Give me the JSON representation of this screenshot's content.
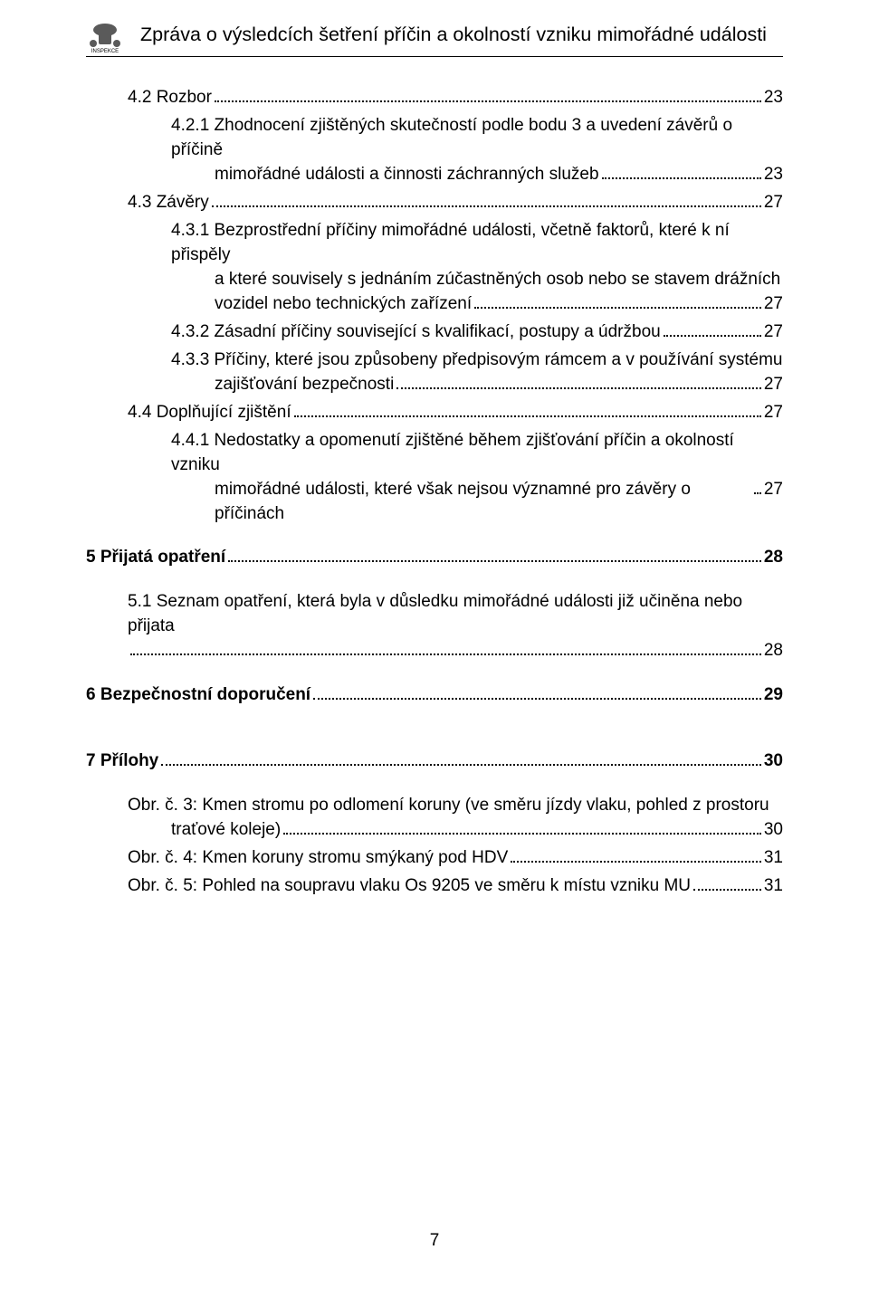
{
  "header": {
    "title": "Zpráva o výsledcích šetření příčin a okolností vzniku mimořádné události",
    "logo_fill": "#6b6b6b",
    "logo_text": "INSPEKCE"
  },
  "toc": [
    {
      "label": "4.2 Rozbor",
      "page": "23",
      "indent": 1,
      "gap": ""
    },
    {
      "label": "4.2.1 Zhodnocení zjištěných skutečností podle bodu 3 a uvedení závěrů o příčině",
      "cont": "mimořádné události a činnosti záchranných služeb",
      "page": "23",
      "indent": 2,
      "gap": "s"
    },
    {
      "label": "4.3 Závěry",
      "page": "27",
      "indent": 1,
      "gap": "s"
    },
    {
      "label": "4.3.1 Bezprostřední příčiny mimořádné události, včetně faktorů, které k ní přispěly",
      "cont": "a které souvisely s jednáním zúčastněných osob nebo se stavem drážních",
      "cont2": "vozidel nebo technických zařízení",
      "page": "27",
      "indent": 2,
      "gap": "s"
    },
    {
      "label": "4.3.2 Zásadní příčiny související s kvalifikací, postupy a údržbou",
      "page": "27",
      "indent": 2,
      "gap": "s"
    },
    {
      "label": "4.3.3 Příčiny, které jsou způsobeny předpisovým rámcem a v používání systému",
      "cont": "zajišťování bezpečnosti",
      "page": "27",
      "indent": 2,
      "gap": "s"
    },
    {
      "label": "4.4 Doplňující zjištění",
      "page": "27",
      "indent": 1,
      "gap": "s"
    },
    {
      "label": "4.4.1 Nedostatky a opomenutí zjištěné během zjišťování příčin a okolností vzniku",
      "cont": "mimořádné události, které však nejsou významné pro závěry o příčinách",
      "page": "27",
      "indent": 2,
      "gap": "s"
    },
    {
      "label": "5 Přijatá opatření",
      "page": "28",
      "indent": 0,
      "bold": true,
      "gap": "m"
    },
    {
      "label": "5.1 Seznam opatření, která byla v důsledku mimořádné události již učiněna nebo přijata",
      "cont": "",
      "page": "28",
      "indent": 1,
      "gap": "m",
      "full_first": true
    },
    {
      "label": "6 Bezpečnostní doporučení",
      "page": "29",
      "indent": 0,
      "bold": true,
      "gap": "m"
    },
    {
      "label": "7 Přílohy",
      "page": "30",
      "indent": 0,
      "bold": true,
      "gap": "l",
      "extra_gap": true
    },
    {
      "label": "Obr. č. 3: Kmen stromu po odlomení koruny (ve směru jízdy vlaku, pohled z prostoru",
      "cont": "traťové koleje)",
      "page": "30",
      "indent": 3,
      "gap": "m",
      "obr": true
    },
    {
      "label": "Obr. č. 4: Kmen koruny stromu smýkaný pod HDV",
      "page": "31",
      "indent": 3,
      "gap": "s",
      "obr": true
    },
    {
      "label": "Obr. č. 5: Pohled na soupravu vlaku Os 9205 ve směru k místu vzniku MU",
      "page": "31",
      "indent": 3,
      "gap": "s",
      "obr": true
    }
  ],
  "page_number": "7"
}
